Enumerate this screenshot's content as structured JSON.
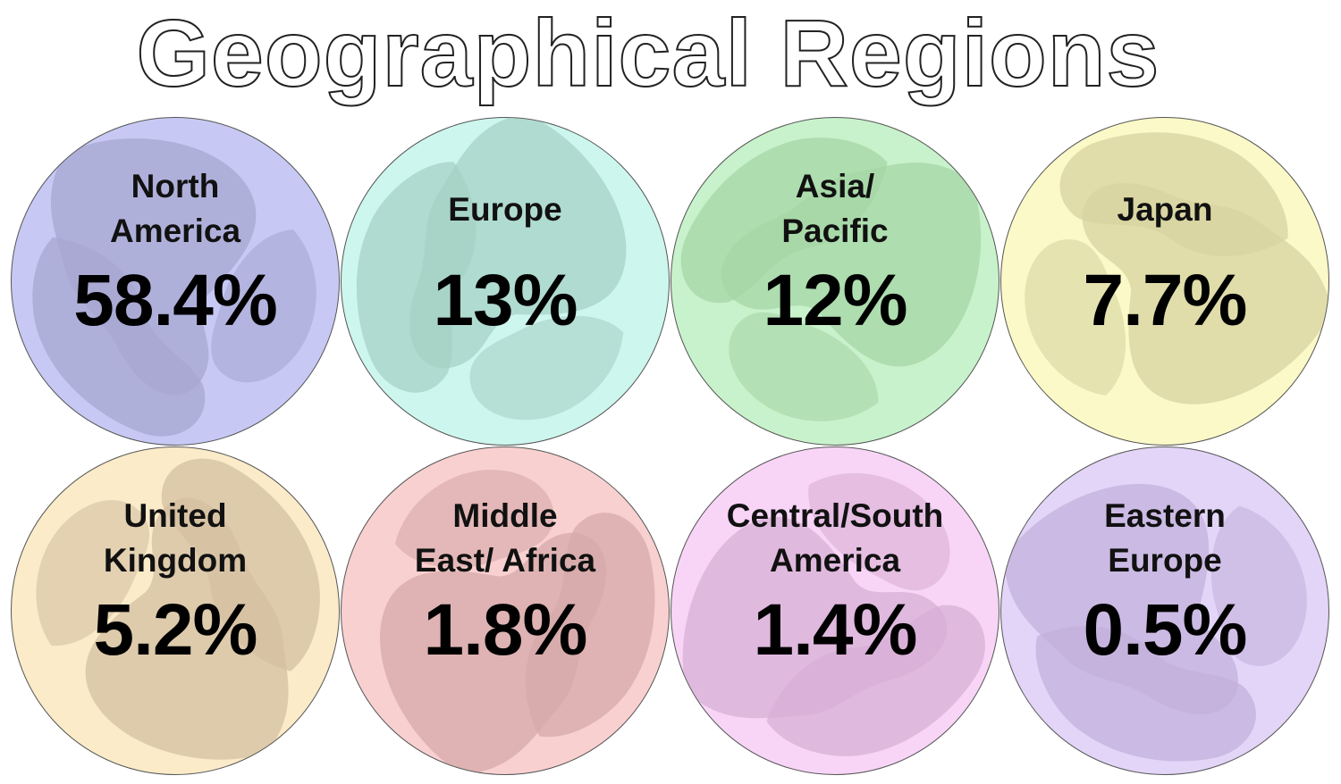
{
  "title": "Geographical Regions",
  "chart_data": {
    "type": "bubble-grid",
    "title": "Geographical Regions",
    "unit": "%",
    "categories": [
      "North America",
      "Europe",
      "Asia/ Pacific",
      "Japan",
      "United Kingdom",
      "Middle East/ Africa",
      "Central/South America",
      "Eastern Europe"
    ],
    "values": [
      58.4,
      13,
      12,
      7.7,
      5.2,
      1.8,
      1.4,
      0.5
    ],
    "items": [
      {
        "name": "North\nAmerica",
        "value": 58.4,
        "label": "58.4%",
        "color": "#c7c9f4",
        "land": "#a7a7d2",
        "lines": 2
      },
      {
        "name": "Europe",
        "value": 13,
        "label": "13%",
        "color": "#cdf6ee",
        "land": "#a6d1c6",
        "lines": 1
      },
      {
        "name": "Asia/\nPacific",
        "value": 12,
        "label": "12%",
        "color": "#c8f2cb",
        "land": "#a5d5a6",
        "lines": 2
      },
      {
        "name": "Japan",
        "value": 7.7,
        "label": "7.7%",
        "color": "#fbf9c8",
        "land": "#d7d3a0",
        "lines": 1
      },
      {
        "name": "United\nKingdom",
        "value": 5.2,
        "label": "5.2%",
        "color": "#fbebc9",
        "land": "#d4c0a1",
        "lines": 2
      },
      {
        "name": "Middle\nEast/ Africa",
        "value": 1.8,
        "label": "1.8%",
        "color": "#f9d0d0",
        "land": "#d6a9a9",
        "lines": 2
      },
      {
        "name": "Central/South\nAmerica",
        "value": 1.4,
        "label": "1.4%",
        "color": "#f8d5f6",
        "land": "#d8afd6",
        "lines": 2
      },
      {
        "name": "Eastern\nEurope",
        "value": 0.5,
        "label": "0.5%",
        "color": "#e3d5f8",
        "land": "#c3b0dc",
        "lines": 2
      }
    ]
  }
}
